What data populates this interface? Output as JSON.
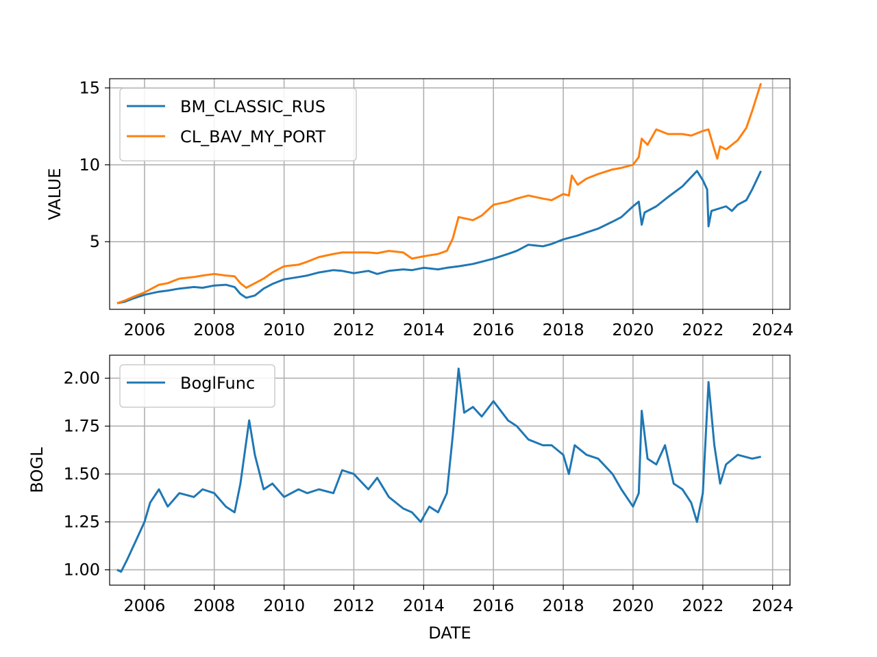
{
  "chart_data": [
    {
      "type": "line",
      "xlabel": "",
      "ylabel": "VALUE",
      "xlim": [
        "2005-01-01",
        "2024-07-01"
      ],
      "ylim": [
        0.6,
        15.6
      ],
      "xticks": [
        "2006",
        "2008",
        "2010",
        "2012",
        "2014",
        "2016",
        "2018",
        "2020",
        "2022",
        "2024"
      ],
      "yticks": [
        5,
        10,
        15
      ],
      "grid": true,
      "legend_position": "top-left",
      "series": [
        {
          "name": "BM_CLASSIC_RUS",
          "color": "#1f77b4",
          "points": [
            [
              "2005-03-20",
              1.0
            ],
            [
              "2005-06-01",
              1.08
            ],
            [
              "2005-09-01",
              1.3
            ],
            [
              "2006-01-01",
              1.55
            ],
            [
              "2006-06-01",
              1.75
            ],
            [
              "2006-09-01",
              1.82
            ],
            [
              "2007-01-01",
              1.95
            ],
            [
              "2007-06-01",
              2.05
            ],
            [
              "2007-09-01",
              2.0
            ],
            [
              "2008-01-01",
              2.15
            ],
            [
              "2008-05-01",
              2.2
            ],
            [
              "2008-08-01",
              2.05
            ],
            [
              "2008-10-01",
              1.6
            ],
            [
              "2008-12-01",
              1.35
            ],
            [
              "2009-03-01",
              1.5
            ],
            [
              "2009-06-01",
              1.95
            ],
            [
              "2009-09-01",
              2.25
            ],
            [
              "2010-01-01",
              2.55
            ],
            [
              "2010-06-01",
              2.7
            ],
            [
              "2010-09-01",
              2.8
            ],
            [
              "2011-01-01",
              3.0
            ],
            [
              "2011-06-01",
              3.15
            ],
            [
              "2011-09-01",
              3.1
            ],
            [
              "2012-01-01",
              2.95
            ],
            [
              "2012-06-01",
              3.1
            ],
            [
              "2012-09-01",
              2.9
            ],
            [
              "2013-01-01",
              3.1
            ],
            [
              "2013-06-01",
              3.2
            ],
            [
              "2013-09-01",
              3.15
            ],
            [
              "2014-01-01",
              3.3
            ],
            [
              "2014-06-01",
              3.2
            ],
            [
              "2014-09-01",
              3.3
            ],
            [
              "2015-01-01",
              3.4
            ],
            [
              "2015-06-01",
              3.55
            ],
            [
              "2015-09-01",
              3.7
            ],
            [
              "2016-01-01",
              3.9
            ],
            [
              "2016-06-01",
              4.2
            ],
            [
              "2016-09-01",
              4.4
            ],
            [
              "2017-01-01",
              4.8
            ],
            [
              "2017-06-01",
              4.7
            ],
            [
              "2017-09-01",
              4.85
            ],
            [
              "2018-01-01",
              5.15
            ],
            [
              "2018-06-01",
              5.4
            ],
            [
              "2018-09-01",
              5.6
            ],
            [
              "2019-01-01",
              5.85
            ],
            [
              "2019-06-01",
              6.3
            ],
            [
              "2019-09-01",
              6.6
            ],
            [
              "2020-01-01",
              7.3
            ],
            [
              "2020-03-01",
              7.6
            ],
            [
              "2020-04-01",
              6.1
            ],
            [
              "2020-05-01",
              6.9
            ],
            [
              "2020-09-01",
              7.3
            ],
            [
              "2021-01-01",
              7.9
            ],
            [
              "2021-06-01",
              8.6
            ],
            [
              "2021-09-01",
              9.2
            ],
            [
              "2021-11-01",
              9.6
            ],
            [
              "2022-01-01",
              9.0
            ],
            [
              "2022-02-15",
              8.4
            ],
            [
              "2022-03-01",
              6.0
            ],
            [
              "2022-04-01",
              7.0
            ],
            [
              "2022-09-01",
              7.3
            ],
            [
              "2022-11-01",
              7.0
            ],
            [
              "2023-01-01",
              7.4
            ],
            [
              "2023-04-01",
              7.7
            ],
            [
              "2023-06-01",
              8.4
            ],
            [
              "2023-09-01",
              9.6
            ]
          ]
        },
        {
          "name": "CL_BAV_MY_PORT",
          "color": "#ff7f0e",
          "points": [
            [
              "2005-03-20",
              1.0
            ],
            [
              "2005-06-01",
              1.15
            ],
            [
              "2005-09-01",
              1.4
            ],
            [
              "2006-01-01",
              1.7
            ],
            [
              "2006-06-01",
              2.2
            ],
            [
              "2006-09-01",
              2.3
            ],
            [
              "2007-01-01",
              2.6
            ],
            [
              "2007-06-01",
              2.7
            ],
            [
              "2007-09-01",
              2.8
            ],
            [
              "2008-01-01",
              2.9
            ],
            [
              "2008-05-01",
              2.8
            ],
            [
              "2008-08-01",
              2.75
            ],
            [
              "2008-10-01",
              2.3
            ],
            [
              "2008-12-01",
              2.0
            ],
            [
              "2009-03-01",
              2.3
            ],
            [
              "2009-06-01",
              2.6
            ],
            [
              "2009-09-01",
              3.0
            ],
            [
              "2010-01-01",
              3.4
            ],
            [
              "2010-06-01",
              3.5
            ],
            [
              "2010-09-01",
              3.7
            ],
            [
              "2011-01-01",
              4.0
            ],
            [
              "2011-06-01",
              4.2
            ],
            [
              "2011-09-01",
              4.3
            ],
            [
              "2012-01-01",
              4.3
            ],
            [
              "2012-06-01",
              4.3
            ],
            [
              "2012-09-01",
              4.25
            ],
            [
              "2013-01-01",
              4.4
            ],
            [
              "2013-06-01",
              4.3
            ],
            [
              "2013-09-01",
              3.9
            ],
            [
              "2014-01-01",
              4.05
            ],
            [
              "2014-06-01",
              4.2
            ],
            [
              "2014-09-01",
              4.4
            ],
            [
              "2014-11-01",
              5.2
            ],
            [
              "2015-01-01",
              6.6
            ],
            [
              "2015-06-01",
              6.4
            ],
            [
              "2015-09-01",
              6.7
            ],
            [
              "2016-01-01",
              7.4
            ],
            [
              "2016-06-01",
              7.6
            ],
            [
              "2016-09-01",
              7.8
            ],
            [
              "2017-01-01",
              8.0
            ],
            [
              "2017-06-01",
              7.8
            ],
            [
              "2017-09-01",
              7.7
            ],
            [
              "2018-01-01",
              8.1
            ],
            [
              "2018-03-01",
              8.0
            ],
            [
              "2018-04-01",
              9.3
            ],
            [
              "2018-06-01",
              8.7
            ],
            [
              "2018-09-01",
              9.1
            ],
            [
              "2019-01-01",
              9.4
            ],
            [
              "2019-06-01",
              9.7
            ],
            [
              "2019-09-01",
              9.8
            ],
            [
              "2020-01-01",
              10.0
            ],
            [
              "2020-03-01",
              10.5
            ],
            [
              "2020-04-01",
              11.7
            ],
            [
              "2020-06-01",
              11.3
            ],
            [
              "2020-09-01",
              12.3
            ],
            [
              "2021-01-01",
              12.0
            ],
            [
              "2021-06-01",
              12.0
            ],
            [
              "2021-09-01",
              11.9
            ],
            [
              "2022-01-01",
              12.2
            ],
            [
              "2022-03-01",
              12.3
            ],
            [
              "2022-05-01",
              11.0
            ],
            [
              "2022-06-01",
              10.4
            ],
            [
              "2022-07-01",
              11.2
            ],
            [
              "2022-09-01",
              11.0
            ],
            [
              "2023-01-01",
              11.6
            ],
            [
              "2023-04-01",
              12.4
            ],
            [
              "2023-06-01",
              13.5
            ],
            [
              "2023-09-01",
              15.3
            ]
          ]
        }
      ]
    },
    {
      "type": "line",
      "xlabel": "DATE",
      "ylabel": "BOGL",
      "xlim": [
        "2005-01-01",
        "2024-07-01"
      ],
      "ylim": [
        0.92,
        2.12
      ],
      "xticks": [
        "2006",
        "2008",
        "2010",
        "2012",
        "2014",
        "2016",
        "2018",
        "2020",
        "2022",
        "2024"
      ],
      "yticks": [
        "1.00",
        "1.25",
        "1.50",
        "1.75",
        "2.00"
      ],
      "grid": true,
      "legend_position": "top-left",
      "series": [
        {
          "name": "BoglFunc",
          "color": "#1f77b4",
          "points": [
            [
              "2005-03-20",
              1.0
            ],
            [
              "2005-05-01",
              0.99
            ],
            [
              "2005-07-01",
              1.05
            ],
            [
              "2005-10-01",
              1.15
            ],
            [
              "2006-01-01",
              1.25
            ],
            [
              "2006-03-01",
              1.35
            ],
            [
              "2006-06-01",
              1.42
            ],
            [
              "2006-09-01",
              1.33
            ],
            [
              "2007-01-01",
              1.4
            ],
            [
              "2007-06-01",
              1.38
            ],
            [
              "2007-09-01",
              1.42
            ],
            [
              "2008-01-01",
              1.4
            ],
            [
              "2008-05-01",
              1.33
            ],
            [
              "2008-08-01",
              1.3
            ],
            [
              "2008-10-01",
              1.45
            ],
            [
              "2009-01-01",
              1.78
            ],
            [
              "2009-03-01",
              1.6
            ],
            [
              "2009-06-01",
              1.42
            ],
            [
              "2009-09-01",
              1.45
            ],
            [
              "2010-01-01",
              1.38
            ],
            [
              "2010-06-01",
              1.42
            ],
            [
              "2010-09-01",
              1.4
            ],
            [
              "2011-01-01",
              1.42
            ],
            [
              "2011-06-01",
              1.4
            ],
            [
              "2011-09-01",
              1.52
            ],
            [
              "2012-01-01",
              1.5
            ],
            [
              "2012-06-01",
              1.42
            ],
            [
              "2012-09-01",
              1.48
            ],
            [
              "2013-01-01",
              1.38
            ],
            [
              "2013-06-01",
              1.32
            ],
            [
              "2013-09-01",
              1.3
            ],
            [
              "2013-12-01",
              1.25
            ],
            [
              "2014-03-01",
              1.33
            ],
            [
              "2014-06-01",
              1.3
            ],
            [
              "2014-09-01",
              1.4
            ],
            [
              "2014-11-01",
              1.7
            ],
            [
              "2015-01-01",
              2.05
            ],
            [
              "2015-03-01",
              1.82
            ],
            [
              "2015-06-01",
              1.85
            ],
            [
              "2015-09-01",
              1.8
            ],
            [
              "2016-01-01",
              1.88
            ],
            [
              "2016-06-01",
              1.78
            ],
            [
              "2016-09-01",
              1.75
            ],
            [
              "2017-01-01",
              1.68
            ],
            [
              "2017-06-01",
              1.65
            ],
            [
              "2017-09-01",
              1.65
            ],
            [
              "2018-01-01",
              1.6
            ],
            [
              "2018-03-01",
              1.5
            ],
            [
              "2018-05-01",
              1.65
            ],
            [
              "2018-09-01",
              1.6
            ],
            [
              "2019-01-01",
              1.58
            ],
            [
              "2019-06-01",
              1.5
            ],
            [
              "2019-09-01",
              1.42
            ],
            [
              "2020-01-01",
              1.33
            ],
            [
              "2020-03-01",
              1.4
            ],
            [
              "2020-04-01",
              1.83
            ],
            [
              "2020-06-01",
              1.58
            ],
            [
              "2020-09-01",
              1.55
            ],
            [
              "2020-12-01",
              1.65
            ],
            [
              "2021-03-01",
              1.45
            ],
            [
              "2021-06-01",
              1.42
            ],
            [
              "2021-09-01",
              1.35
            ],
            [
              "2021-11-01",
              1.25
            ],
            [
              "2022-01-01",
              1.4
            ],
            [
              "2022-03-01",
              1.98
            ],
            [
              "2022-05-01",
              1.65
            ],
            [
              "2022-07-01",
              1.45
            ],
            [
              "2022-09-01",
              1.55
            ],
            [
              "2023-01-01",
              1.6
            ],
            [
              "2023-06-01",
              1.58
            ],
            [
              "2023-09-01",
              1.59
            ]
          ]
        }
      ]
    }
  ]
}
